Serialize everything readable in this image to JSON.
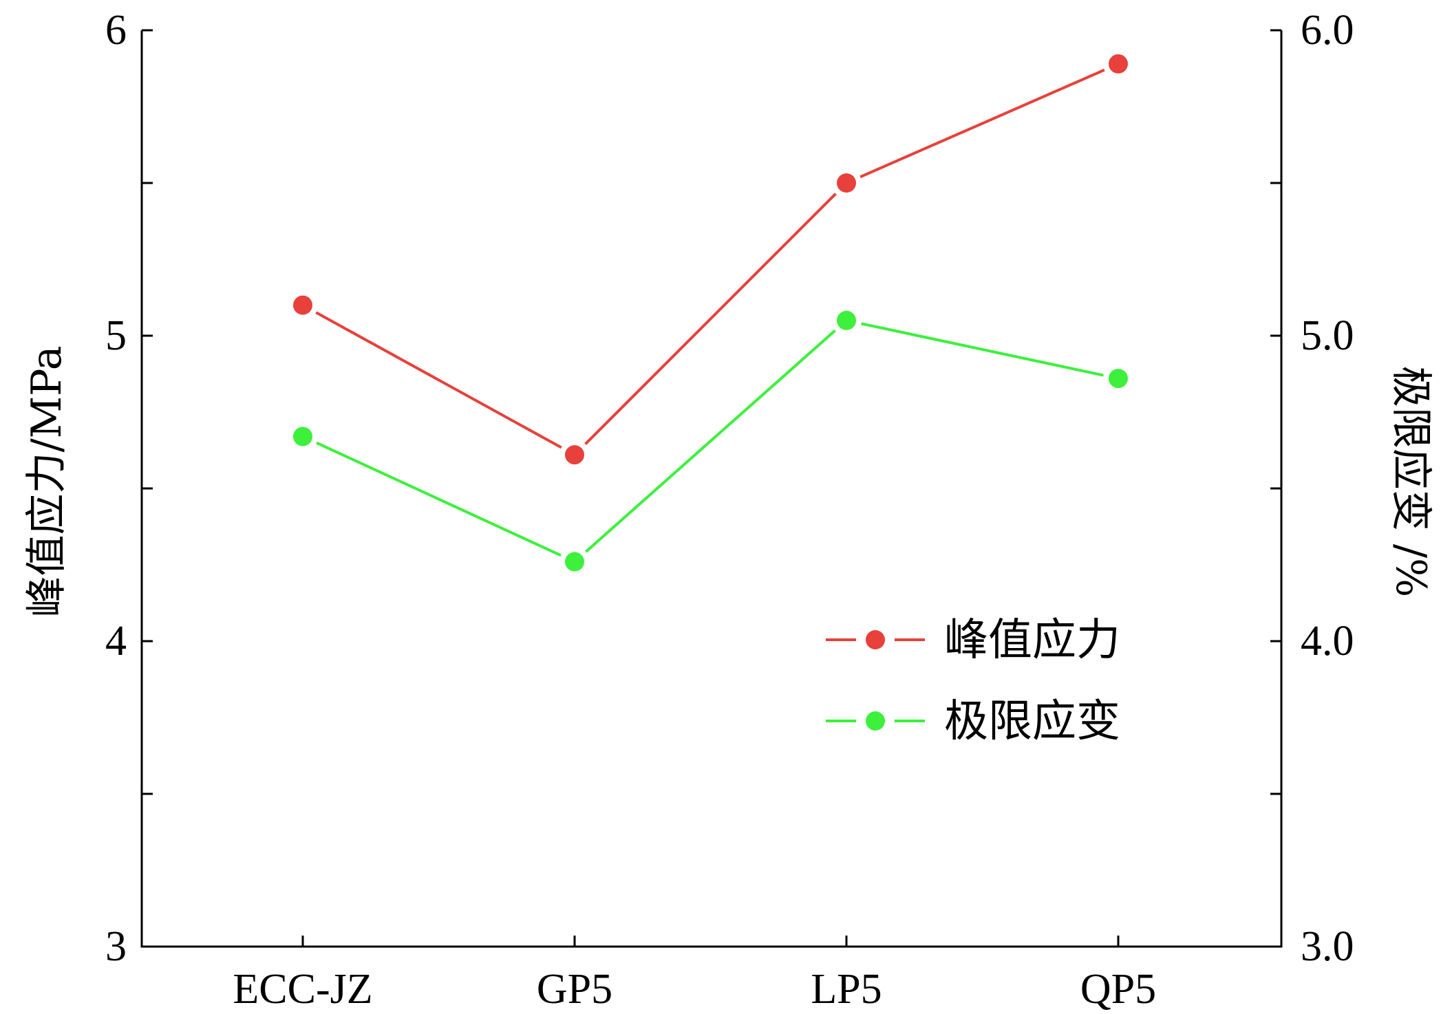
{
  "chart_data": {
    "type": "line",
    "categories": [
      "ECC-JZ",
      "GP5",
      "LP5",
      "QP5"
    ],
    "series": [
      {
        "name": "峰值应力",
        "axis": "left",
        "color": "#e8403a",
        "values": [
          5.1,
          4.61,
          5.5,
          5.89
        ]
      },
      {
        "name": "极限应变",
        "axis": "right",
        "color": "#3cf03c",
        "values": [
          4.67,
          4.26,
          5.05,
          4.86
        ]
      }
    ],
    "ylabel_left": "峰值应力/MPa",
    "ylabel_right": "极限应变 /%",
    "ylim_left": [
      3,
      6
    ],
    "ylim_right": [
      3.0,
      6.0
    ],
    "yticks_left": [
      "3",
      "4",
      "5",
      "6"
    ],
    "yticks_right": [
      "3.0",
      "4.0",
      "5.0",
      "6.0"
    ],
    "legend_position": "center-right",
    "grid": false
  }
}
